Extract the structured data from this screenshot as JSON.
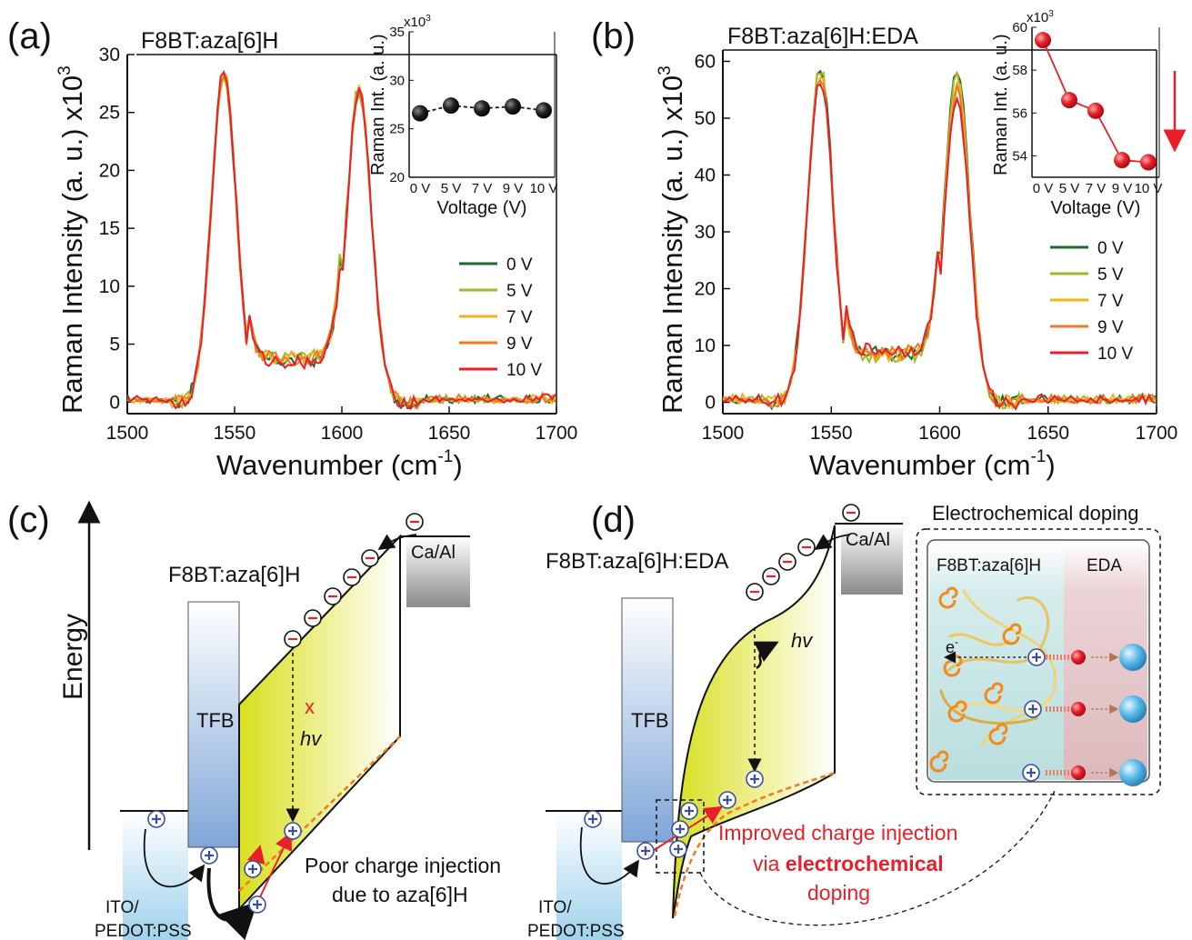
{
  "panels": {
    "a": {
      "letter": "(a)",
      "title": "F8BT:aza[6]H"
    },
    "b": {
      "letter": "(b)",
      "title": "F8BT:aza[6]H:EDA"
    },
    "c": {
      "letter": "(c)"
    },
    "d": {
      "letter": "(d)"
    }
  },
  "axes": {
    "ylabel": "Raman Intensity (a. u.) x10",
    "ylabel_exp": "3",
    "xlabel": "Wavenumber (cm",
    "xlabel_exp": "-1",
    "xlabel_end": ")",
    "inset_ylabel": "Raman Int. (a. u.)",
    "inset_xlabel": "Voltage (V)",
    "inset_multiplier": "x10",
    "inset_multiplier_exp": "3"
  },
  "legend": [
    "0 V",
    "5 V",
    "7 V",
    "9 V",
    "10 V"
  ],
  "series_colors": [
    "#1f6b2e",
    "#a7b526",
    "#f2b21c",
    "#f07a20",
    "#e8202a"
  ],
  "chart_data": [
    {
      "type": "line",
      "title": "F8BT:aza[6]H",
      "xlabel": "Wavenumber (cm-1)",
      "ylabel": "Raman Intensity (a. u.) x10^3",
      "xlim": [
        1500,
        1700
      ],
      "ylim": [
        -1,
        30
      ],
      "xticks": [
        1500,
        1550,
        1600,
        1650,
        1700
      ],
      "yticks": [
        0,
        5,
        10,
        15,
        20,
        25,
        30
      ],
      "series": [
        {
          "name": "0 V",
          "peak1": 28.2,
          "peak2": 27.0,
          "valley": 4.2
        },
        {
          "name": "5 V",
          "peak1": 28.4,
          "peak2": 27.3,
          "valley": 4.6
        },
        {
          "name": "7 V",
          "peak1": 28.5,
          "peak2": 27.1,
          "valley": 4.5
        },
        {
          "name": "9 V",
          "peak1": 28.3,
          "peak2": 26.9,
          "valley": 4.4
        },
        {
          "name": "10 V",
          "peak1": 28.6,
          "peak2": 26.7,
          "valley": 4.1
        }
      ],
      "legend_position": "right",
      "inset": {
        "type": "scatter",
        "xlabel": "Voltage (V)",
        "ylabel": "Raman Int. (a. u.)",
        "categories": [
          "0 V",
          "5 V",
          "7 V",
          "9 V",
          "10 V"
        ],
        "values": [
          26.6,
          27.4,
          27.1,
          27.3,
          26.9
        ],
        "ylim": [
          20,
          35
        ],
        "yticks": [
          20,
          25,
          30,
          35
        ],
        "point_color": "#111111"
      }
    },
    {
      "type": "line",
      "title": "F8BT:aza[6]H:EDA",
      "xlabel": "Wavenumber (cm-1)",
      "ylabel": "Raman Intensity (a. u.) x10^3",
      "xlim": [
        1500,
        1700
      ],
      "ylim": [
        -2,
        62
      ],
      "xticks": [
        1500,
        1550,
        1600,
        1650,
        1700
      ],
      "yticks": [
        0,
        10,
        20,
        30,
        40,
        50,
        60
      ],
      "series": [
        {
          "name": "0 V",
          "peak1": 59.5,
          "peak2": 58.8,
          "valley": 10.0
        },
        {
          "name": "5 V",
          "peak1": 58.9,
          "peak2": 57.6,
          "valley": 9.6
        },
        {
          "name": "7 V",
          "peak1": 58.4,
          "peak2": 56.8,
          "valley": 9.9
        },
        {
          "name": "9 V",
          "peak1": 57.8,
          "peak2": 55.0,
          "valley": 10.3
        },
        {
          "name": "10 V",
          "peak1": 57.1,
          "peak2": 53.6,
          "valley": 10.8
        }
      ],
      "legend_position": "right",
      "inset": {
        "type": "scatter",
        "xlabel": "Voltage (V)",
        "ylabel": "Raman Int. (a. u.)",
        "categories": [
          "0 V",
          "5 V",
          "7 V",
          "9 V",
          "10 V"
        ],
        "values": [
          59.4,
          56.6,
          56.1,
          53.8,
          53.7
        ],
        "ylim": [
          53,
          60
        ],
        "yticks": [
          54,
          56,
          58,
          60
        ],
        "point_color": "#e8202a"
      }
    }
  ],
  "diagram_c": {
    "energy": "Energy",
    "material": "F8BT:aza[6]H",
    "tfb": "TFB",
    "cathode": "Ca/Al",
    "anode_line1": "ITO/",
    "anode_line2": "PEDOT:PSS",
    "photon": "hv",
    "blocked": "x",
    "note_line1": "Poor charge injection",
    "note_line2": "due to aza[6]H"
  },
  "diagram_d": {
    "material": "F8BT:aza[6]H:EDA",
    "tfb": "TFB",
    "cathode": "Ca/Al",
    "anode_line1": "ITO/",
    "anode_line2": "PEDOT:PSS",
    "photon": "hv",
    "note_line1": "Improved charge injection",
    "note_line2_pre": "via ",
    "note_line2_bold": "electrochemical",
    "note_line3": "doping",
    "box_title": "Electrochemical doping",
    "box_left": "F8BT:aza[6]H",
    "box_right": "EDA",
    "electron": "e",
    "electron_sup": "-"
  },
  "symbols": {
    "plus": "+",
    "minus": "-"
  }
}
